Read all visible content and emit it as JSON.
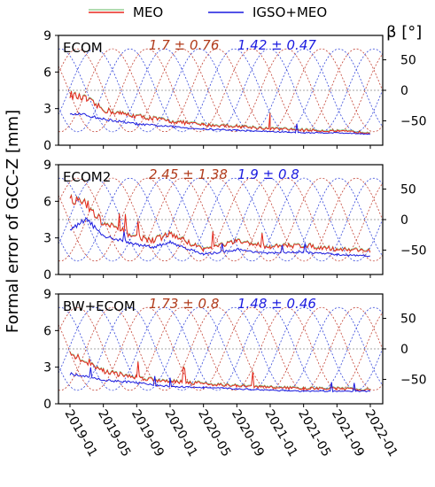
{
  "legend": {
    "meo_label": "MEO",
    "igso_label": "IGSO+MEO",
    "meo_color": "#e8281e",
    "igso_color": "#1a1adf"
  },
  "axes": {
    "left_title": "Formal error of GCC-Z [mm]",
    "right_title": "β [°]",
    "left_ticks": [
      "0",
      "3",
      "6",
      "9"
    ],
    "right_ticks": [
      "50",
      "0",
      "-50"
    ],
    "x_ticks": [
      "2019-01",
      "2019-05",
      "2019-09",
      "2020-01",
      "2020-05",
      "2020-09",
      "2021-01",
      "2021-05",
      "2021-09",
      "2022-01"
    ]
  },
  "chart_data": [
    {
      "type": "line",
      "panel": "ECOM",
      "title": "ECOM",
      "ylabel": "Formal error of GCC-Z [mm]",
      "ylim": [
        0,
        9
      ],
      "y2label": "β [°]",
      "y2lim": [
        -90,
        90
      ],
      "x": [
        "2019-01",
        "2019-03",
        "2019-05",
        "2019-07",
        "2019-09",
        "2019-11",
        "2020-01",
        "2020-05",
        "2020-09",
        "2021-01",
        "2021-05",
        "2021-09",
        "2022-01"
      ],
      "series": [
        {
          "name": "MEO",
          "values": [
            4.0,
            3.6,
            2.8,
            2.5,
            2.3,
            2.1,
            1.9,
            1.6,
            1.5,
            1.3,
            1.2,
            1.1,
            1.0
          ]
        },
        {
          "name": "IGSO+MEO",
          "values": [
            2.6,
            2.4,
            2.1,
            1.9,
            1.7,
            1.6,
            1.5,
            1.3,
            1.2,
            1.1,
            1.0,
            1.0,
            0.9
          ]
        }
      ],
      "stats": [
        {
          "text": "1.7 ± 0.76",
          "series": "MEO"
        },
        {
          "text": "1.42 ± 0.47",
          "series": "IGSO+MEO"
        }
      ]
    },
    {
      "type": "line",
      "panel": "ECOM2",
      "title": "ECOM2",
      "ylabel": "Formal error of GCC-Z [mm]",
      "ylim": [
        0,
        9
      ],
      "y2label": "β [°]",
      "y2lim": [
        -90,
        90
      ],
      "x": [
        "2019-01",
        "2019-03",
        "2019-05",
        "2019-07",
        "2019-09",
        "2019-11",
        "2020-01",
        "2020-05",
        "2020-09",
        "2021-01",
        "2021-05",
        "2021-09",
        "2022-01"
      ],
      "series": [
        {
          "name": "MEO",
          "values": [
            6.0,
            5.5,
            4.0,
            3.5,
            3.0,
            2.7,
            3.2,
            2.0,
            2.6,
            2.2,
            2.3,
            2.0,
            1.9
          ]
        },
        {
          "name": "IGSO+MEO",
          "values": [
            3.5,
            4.5,
            3.0,
            2.8,
            2.4,
            2.2,
            2.6,
            1.6,
            2.0,
            1.7,
            1.8,
            1.6,
            1.5
          ]
        }
      ],
      "stats": [
        {
          "text": "2.45 ± 1.38",
          "series": "MEO"
        },
        {
          "text": "1.9 ± 0.8",
          "series": "IGSO+MEO"
        }
      ]
    },
    {
      "type": "line",
      "panel": "BW+ECOM",
      "title": "BW+ECOM",
      "ylabel": "Formal error of GCC-Z [mm]",
      "ylim": [
        0,
        9
      ],
      "y2label": "β [°]",
      "y2lim": [
        -90,
        90
      ],
      "x": [
        "2019-01",
        "2019-03",
        "2019-05",
        "2019-07",
        "2019-09",
        "2019-11",
        "2020-01",
        "2020-05",
        "2020-09",
        "2021-01",
        "2021-05",
        "2021-09",
        "2022-01"
      ],
      "series": [
        {
          "name": "MEO",
          "values": [
            3.8,
            3.4,
            2.6,
            2.3,
            2.1,
            1.9,
            1.8,
            1.6,
            1.4,
            1.3,
            1.2,
            1.2,
            1.1
          ]
        },
        {
          "name": "IGSO+MEO",
          "values": [
            2.4,
            2.2,
            1.9,
            1.8,
            1.7,
            1.5,
            1.4,
            1.3,
            1.2,
            1.1,
            1.0,
            1.0,
            1.0
          ]
        }
      ],
      "stats": [
        {
          "text": "1.73 ± 0.8",
          "series": "MEO"
        },
        {
          "text": "1.48 ± 0.46",
          "series": "IGSO+MEO"
        }
      ]
    }
  ]
}
